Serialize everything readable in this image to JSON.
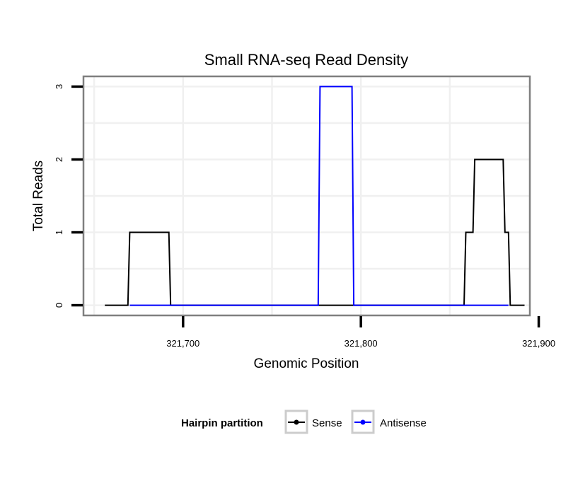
{
  "chart_data": {
    "type": "line",
    "title": "Small RNA-seq Read Density",
    "xlabel": "Genomic Position",
    "ylabel": "Total Reads",
    "xlim": [
      321644,
      321895
    ],
    "ylim": [
      -0.14,
      3.14
    ],
    "x_ticks": [
      321700,
      321800,
      321900
    ],
    "x_tick_labels": [
      "321,700",
      "321,800",
      "321,900"
    ],
    "y_ticks": [
      0,
      1,
      2,
      3
    ],
    "y_tick_labels": [
      "0",
      "1",
      "2",
      "3"
    ],
    "grid": true,
    "series": [
      {
        "name": "Sense",
        "color": "#000000",
        "x": [
          321656,
          321669,
          321670,
          321692,
          321693,
          321777,
          321778,
          321781,
          321782,
          321796,
          321797,
          321858,
          321859,
          321863,
          321864,
          321880,
          321881,
          321883,
          321884,
          321892
        ],
        "y": [
          0,
          0,
          1,
          1,
          0,
          0,
          0,
          0,
          0,
          0,
          0,
          0,
          1,
          1,
          2,
          2,
          1,
          1,
          0,
          0
        ]
      },
      {
        "name": "Antisense",
        "color": "#0000ff",
        "x": [
          321670,
          321692,
          321693,
          321776,
          321777,
          321795,
          321796,
          321797,
          321859,
          321883
        ],
        "y": [
          0,
          0,
          0,
          0,
          3,
          3,
          0,
          0,
          0,
          0
        ]
      }
    ],
    "legend": {
      "title": "Hairpin partition",
      "position": "bottom",
      "items": [
        "Sense",
        "Antisense"
      ]
    }
  }
}
